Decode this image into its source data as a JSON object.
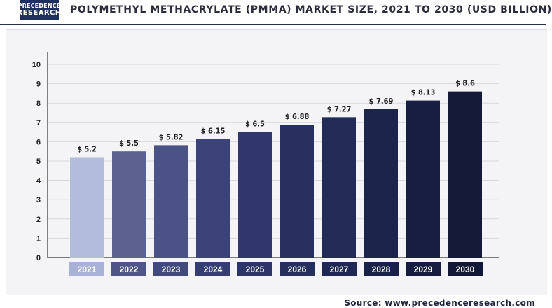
{
  "header": {
    "logo_line1": "PRECEDENCE",
    "logo_line2": "RESEARCH",
    "title": "POLYMETHYL METHACRYLATE (PMMA) MARKET SIZE, 2021 TO 2030 (USD BILLION)"
  },
  "footer": {
    "source": "Source: www.precedenceresearch.com"
  },
  "chart_data": {
    "type": "bar",
    "title": "POLYMETHYL METHACRYLATE (PMMA) MARKET SIZE, 2021 TO 2030 (USD BILLION)",
    "categories": [
      "2021",
      "2022",
      "2023",
      "2024",
      "2025",
      "2026",
      "2027",
      "2028",
      "2029",
      "2030"
    ],
    "values": [
      5.2,
      5.5,
      5.82,
      6.15,
      6.5,
      6.88,
      7.27,
      7.69,
      8.13,
      8.6
    ],
    "data_labels": [
      "$ 5.2",
      "$ 5.5",
      "$ 5.82",
      "$ 6.15",
      "$ 6.5",
      "$ 6.88",
      "$ 7.27",
      "$ 7.69",
      "$ 8.13",
      "$ 8.6"
    ],
    "yticks": [
      0,
      1,
      2,
      3,
      4,
      5,
      6,
      7,
      8,
      9,
      10
    ],
    "ylim": [
      0,
      10
    ],
    "xlabel": "",
    "ylabel": "",
    "grid": true,
    "bar_colors": [
      "#b4bcdc",
      "#5c6190",
      "#4b5286",
      "#3a4278",
      "#2f376c",
      "#283060",
      "#222a56",
      "#1d244c",
      "#181e42",
      "#141a38"
    ],
    "label_box_colors": [
      "#a9b1d6",
      "#4f5586",
      "#424a7d",
      "#363d72",
      "#2c3468",
      "#262e5c",
      "#1f2752",
      "#1a2148",
      "#161c3f",
      "#121735"
    ]
  }
}
